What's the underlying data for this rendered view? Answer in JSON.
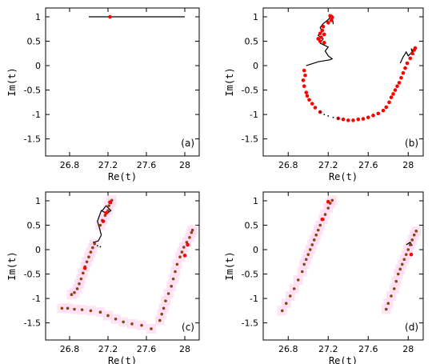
{
  "chart_data": [
    {
      "type": "scatter",
      "panel_label": "(a)",
      "xlabel": "Re(t)",
      "ylabel": "Im(t)",
      "xlim": [
        26.55,
        28.15
      ],
      "ylim": [
        -1.85,
        1.18
      ],
      "xticks": [
        "26.8",
        "27.2",
        "27.6",
        "28"
      ],
      "yticks": [
        "1",
        "0.5",
        "0",
        "-0.5",
        "-1",
        "-1.5"
      ],
      "grid": false,
      "series": [
        {
          "style": "line",
          "color": "#000000",
          "points": [
            [
              27.0,
              1.0
            ],
            [
              28.0,
              1.0
            ]
          ]
        },
        {
          "style": "points",
          "color": "#ff0000",
          "points": [
            [
              27.22,
              1.0
            ]
          ]
        }
      ]
    },
    {
      "type": "scatter",
      "panel_label": "(b)",
      "xlabel": "Re(t)",
      "ylabel": "Im(t)",
      "xlim": [
        26.55,
        28.15
      ],
      "ylim": [
        -1.85,
        1.18
      ],
      "xticks": [
        "26.8",
        "27.2",
        "27.6",
        "28"
      ],
      "yticks": [
        "1",
        "0.5",
        "0",
        "-0.5",
        "-1",
        "-1.5"
      ],
      "grid": false,
      "series": [
        {
          "style": "line",
          "color": "#000000",
          "points": [
            [
              27.15,
              0.86
            ],
            [
              27.12,
              0.78
            ],
            [
              27.14,
              0.7
            ],
            [
              27.1,
              0.62
            ],
            [
              27.15,
              0.55
            ],
            [
              27.12,
              0.46
            ],
            [
              27.2,
              0.38
            ],
            [
              27.17,
              0.3
            ],
            [
              27.2,
              0.2
            ],
            [
              27.24,
              0.14
            ],
            [
              27.22,
              0.12
            ],
            [
              27.1,
              0.08
            ],
            [
              26.98,
              0.0
            ]
          ]
        },
        {
          "style": "line",
          "color": "#000000",
          "points": [
            [
              27.15,
              0.86
            ],
            [
              27.2,
              0.94
            ],
            [
              27.22,
              0.99
            ],
            [
              27.24,
              1.02
            ],
            [
              27.25,
              0.85
            ]
          ]
        },
        {
          "style": "line",
          "color": "#000000",
          "points": [
            [
              27.92,
              0.05
            ],
            [
              27.95,
              0.18
            ],
            [
              27.98,
              0.28
            ],
            [
              28.0,
              0.2
            ],
            [
              28.04,
              0.28
            ],
            [
              28.03,
              0.35
            ],
            [
              28.06,
              0.22
            ]
          ]
        },
        {
          "style": "points",
          "color": "#ff0000",
          "points": [
            [
              27.22,
              1.02
            ],
            [
              27.24,
              0.99
            ],
            [
              27.23,
              0.93
            ],
            [
              27.2,
              0.88
            ],
            [
              27.15,
              0.8
            ],
            [
              27.14,
              0.72
            ],
            [
              27.12,
              0.66
            ],
            [
              27.16,
              0.64
            ],
            [
              27.13,
              0.58
            ],
            [
              27.1,
              0.55
            ],
            [
              27.12,
              0.5
            ],
            [
              27.16,
              0.47
            ],
            [
              26.96,
              -0.1
            ],
            [
              26.97,
              -0.2
            ],
            [
              26.95,
              -0.3
            ],
            [
              26.96,
              -0.42
            ],
            [
              26.98,
              -0.55
            ],
            [
              26.99,
              -0.62
            ],
            [
              27.01,
              -0.7
            ],
            [
              27.04,
              -0.78
            ],
            [
              27.07,
              -0.86
            ],
            [
              27.12,
              -0.95
            ],
            [
              27.3,
              -1.08
            ],
            [
              27.35,
              -1.1
            ],
            [
              27.4,
              -1.12
            ],
            [
              27.45,
              -1.12
            ],
            [
              27.5,
              -1.1
            ],
            [
              27.55,
              -1.09
            ],
            [
              27.6,
              -1.06
            ],
            [
              27.65,
              -1.02
            ],
            [
              27.7,
              -0.98
            ],
            [
              27.75,
              -0.92
            ],
            [
              27.78,
              -0.85
            ],
            [
              27.81,
              -0.75
            ],
            [
              27.83,
              -0.65
            ],
            [
              27.85,
              -0.58
            ],
            [
              27.87,
              -0.5
            ],
            [
              27.89,
              -0.42
            ],
            [
              27.91,
              -0.35
            ],
            [
              27.93,
              -0.25
            ],
            [
              27.95,
              -0.15
            ],
            [
              27.97,
              -0.05
            ],
            [
              27.99,
              0.05
            ],
            [
              28.02,
              0.15
            ],
            [
              28.04,
              0.25
            ],
            [
              28.06,
              0.32
            ],
            [
              28.07,
              0.36
            ]
          ]
        },
        {
          "style": "dotted",
          "color": "#000000",
          "points": [
            [
              27.12,
              -0.95
            ],
            [
              27.16,
              -1.0
            ],
            [
              27.2,
              -1.03
            ],
            [
              27.25,
              -1.06
            ],
            [
              27.3,
              -1.08
            ]
          ]
        }
      ]
    },
    {
      "type": "scatter",
      "panel_label": "(c)",
      "xlabel": "Re(t)",
      "ylabel": "Im(t)",
      "xlim": [
        26.55,
        28.15
      ],
      "ylim": [
        -1.85,
        1.18
      ],
      "xticks": [
        "26.8",
        "27.2",
        "27.6",
        "28"
      ],
      "yticks": [
        "1",
        "0.5",
        "0",
        "-0.5",
        "-1",
        "-1.5"
      ],
      "grid": false,
      "series": [
        {
          "style": "line",
          "color": "#000000",
          "points": [
            [
              27.05,
              0.15
            ],
            [
              27.1,
              0.18
            ],
            [
              27.13,
              0.3
            ],
            [
              27.11,
              0.45
            ],
            [
              27.09,
              0.58
            ],
            [
              27.13,
              0.8
            ],
            [
              27.19,
              0.74
            ],
            [
              27.23,
              0.8
            ],
            [
              27.18,
              0.9
            ],
            [
              27.14,
              0.8
            ]
          ]
        },
        {
          "style": "dotted",
          "color": "#000000",
          "points": [
            [
              27.05,
              0.15
            ],
            [
              27.09,
              0.08
            ],
            [
              27.12,
              0.06
            ]
          ]
        },
        {
          "style": "points",
          "color": "#8b4513",
          "points": [
            [
              27.24,
              1.01
            ],
            [
              27.23,
              0.96
            ],
            [
              27.21,
              0.9
            ],
            [
              27.2,
              0.8
            ],
            [
              27.17,
              0.7
            ],
            [
              27.14,
              0.6
            ],
            [
              27.12,
              0.5
            ],
            [
              27.06,
              0.12
            ],
            [
              27.04,
              0.04
            ],
            [
              27.02,
              -0.05
            ],
            [
              27.0,
              -0.15
            ],
            [
              26.98,
              -0.25
            ],
            [
              26.96,
              -0.35
            ],
            [
              26.94,
              -0.48
            ],
            [
              26.92,
              -0.6
            ],
            [
              26.9,
              -0.7
            ],
            [
              26.88,
              -0.8
            ],
            [
              26.85,
              -0.88
            ],
            [
              26.82,
              -0.92
            ],
            [
              26.72,
              -1.2
            ],
            [
              26.78,
              -1.2
            ],
            [
              26.85,
              -1.22
            ],
            [
              26.93,
              -1.23
            ],
            [
              27.02,
              -1.25
            ],
            [
              27.12,
              -1.28
            ],
            [
              27.2,
              -1.35
            ],
            [
              27.28,
              -1.42
            ],
            [
              27.36,
              -1.48
            ],
            [
              27.45,
              -1.52
            ],
            [
              27.55,
              -1.55
            ],
            [
              27.65,
              -1.62
            ],
            [
              27.74,
              -1.45
            ],
            [
              27.76,
              -1.32
            ],
            [
              27.78,
              -1.2
            ],
            [
              27.8,
              -1.05
            ],
            [
              27.83,
              -0.9
            ],
            [
              27.86,
              -0.75
            ],
            [
              27.88,
              -0.6
            ],
            [
              27.9,
              -0.45
            ],
            [
              27.92,
              -0.3
            ],
            [
              27.95,
              -0.15
            ],
            [
              27.97,
              -0.05
            ],
            [
              27.99,
              0.05
            ],
            [
              28.02,
              0.15
            ],
            [
              28.05,
              0.25
            ],
            [
              28.07,
              0.35
            ],
            [
              28.08,
              0.4
            ]
          ]
        },
        {
          "style": "points",
          "color": "#ff0000",
          "points": [
            [
              27.22,
              0.97
            ],
            [
              27.18,
              0.75
            ],
            [
              27.15,
              0.58
            ],
            [
              26.96,
              -0.38
            ],
            [
              28.0,
              -0.12
            ],
            [
              28.03,
              0.1
            ]
          ]
        }
      ]
    },
    {
      "type": "scatter",
      "panel_label": "(d)",
      "xlabel": "Re(t)",
      "ylabel": "Im(t)",
      "xlim": [
        26.55,
        28.15
      ],
      "ylim": [
        -1.85,
        1.18
      ],
      "xticks": [
        "26.8",
        "27.2",
        "27.6",
        "28"
      ],
      "yticks": [
        "1",
        "0.5",
        "0",
        "-0.5",
        "-1",
        "-1.5"
      ],
      "grid": false,
      "series": [
        {
          "style": "line",
          "color": "#000000",
          "points": [
            [
              27.98,
              0.1
            ],
            [
              28.02,
              0.15
            ],
            [
              28.04,
              0.08
            ]
          ]
        },
        {
          "style": "points",
          "color": "#8b4513",
          "points": [
            [
              27.24,
              1.01
            ],
            [
              27.22,
              0.95
            ],
            [
              27.2,
              0.85
            ],
            [
              27.17,
              0.72
            ],
            [
              27.15,
              0.62
            ],
            [
              27.12,
              0.5
            ],
            [
              27.1,
              0.4
            ],
            [
              27.08,
              0.3
            ],
            [
              27.06,
              0.2
            ],
            [
              27.04,
              0.1
            ],
            [
              27.02,
              0.0
            ],
            [
              27.0,
              -0.1
            ],
            [
              26.98,
              -0.2
            ],
            [
              26.96,
              -0.3
            ],
            [
              26.94,
              -0.45
            ],
            [
              26.9,
              -0.62
            ],
            [
              26.86,
              -0.8
            ],
            [
              26.82,
              -0.95
            ],
            [
              26.78,
              -1.1
            ],
            [
              26.74,
              -1.25
            ],
            [
              28.08,
              0.38
            ],
            [
              28.06,
              0.3
            ],
            [
              28.04,
              0.2
            ],
            [
              28.02,
              0.1
            ],
            [
              28.0,
              0.0
            ],
            [
              27.98,
              -0.1
            ],
            [
              27.96,
              -0.2
            ],
            [
              27.94,
              -0.3
            ],
            [
              27.92,
              -0.4
            ],
            [
              27.9,
              -0.5
            ],
            [
              27.88,
              -0.65
            ],
            [
              27.86,
              -0.8
            ],
            [
              27.83,
              -0.95
            ],
            [
              27.8,
              -1.1
            ],
            [
              27.78,
              -1.22
            ]
          ]
        },
        {
          "style": "points",
          "color": "#ff0000",
          "points": [
            [
              27.2,
              0.98
            ],
            [
              27.14,
              0.62
            ],
            [
              28.03,
              -0.1
            ]
          ]
        }
      ]
    }
  ],
  "colors": {
    "background": "#ffffff",
    "halo": "#ffd9f2"
  }
}
